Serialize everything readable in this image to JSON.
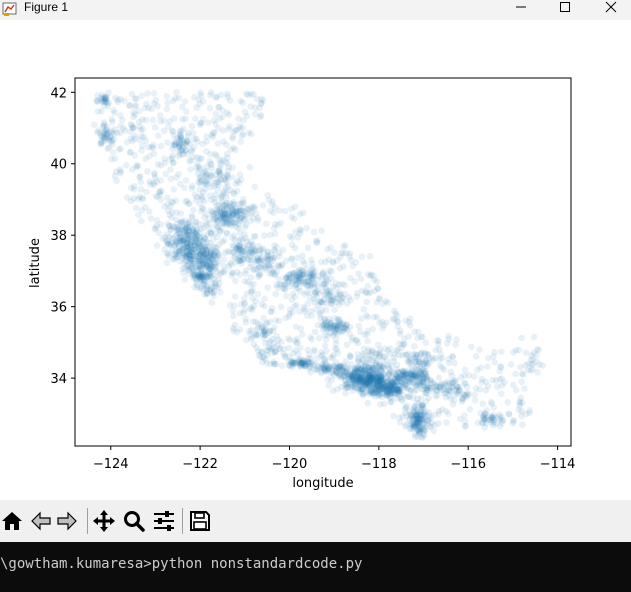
{
  "window": {
    "title": "Figure 1",
    "app_icon": "matplotlib-figure-icon",
    "controls": [
      "minimize-icon",
      "maximize-icon",
      "close-icon"
    ]
  },
  "toolbar": {
    "buttons": [
      {
        "name": "home-button",
        "icon": "home-icon"
      },
      {
        "name": "back-button",
        "icon": "arrow-left-icon"
      },
      {
        "name": "forward-button",
        "icon": "arrow-right-icon"
      },
      {
        "name": "pan-button",
        "icon": "move-arrows-icon"
      },
      {
        "name": "zoom-button",
        "icon": "magnifier-icon"
      },
      {
        "name": "configure-subplots-button",
        "icon": "sliders-icon"
      },
      {
        "name": "save-button",
        "icon": "floppy-disk-icon"
      }
    ]
  },
  "terminal": {
    "text": "\\gowtham.kumaresa>python nonstandardcode.py"
  },
  "chart_data": {
    "type": "scatter",
    "title": "",
    "xlabel": "longitude",
    "ylabel": "latitude",
    "xlim": [
      -124.8,
      -113.7
    ],
    "ylim": [
      32.1,
      42.4
    ],
    "xticks": [
      -124,
      -122,
      -120,
      -118,
      -116,
      -114
    ],
    "xtick_labels": [
      "−124",
      "−122",
      "−120",
      "−118",
      "−116",
      "−114"
    ],
    "yticks": [
      34,
      36,
      38,
      40,
      42
    ],
    "ytick_labels": [
      "34",
      "36",
      "38",
      "40",
      "42"
    ],
    "grid": false,
    "legend": false,
    "marker_color": "#1f77b4",
    "alpha": 0.1,
    "dense_clusters": [
      {
        "x": -124.2,
        "y": 41.8,
        "n": 22,
        "sx": 0.12,
        "sy": 0.1
      },
      {
        "x": -124.1,
        "y": 40.8,
        "n": 35,
        "sx": 0.1,
        "sy": 0.15
      },
      {
        "x": -122.4,
        "y": 40.5,
        "n": 45,
        "sx": 0.12,
        "sy": 0.22
      },
      {
        "x": -121.6,
        "y": 39.6,
        "n": 60,
        "sx": 0.3,
        "sy": 0.3
      },
      {
        "x": -121.4,
        "y": 38.6,
        "n": 140,
        "sx": 0.25,
        "sy": 0.18
      },
      {
        "x": -122.3,
        "y": 37.8,
        "n": 230,
        "sx": 0.22,
        "sy": 0.35
      },
      {
        "x": -121.9,
        "y": 37.3,
        "n": 120,
        "sx": 0.18,
        "sy": 0.2
      },
      {
        "x": -122.0,
        "y": 36.9,
        "n": 40,
        "sx": 0.1,
        "sy": 0.1
      },
      {
        "x": -121.8,
        "y": 36.6,
        "n": 35,
        "sx": 0.15,
        "sy": 0.12
      },
      {
        "x": -121.0,
        "y": 37.6,
        "n": 70,
        "sx": 0.2,
        "sy": 0.22
      },
      {
        "x": -120.5,
        "y": 37.3,
        "n": 45,
        "sx": 0.2,
        "sy": 0.2
      },
      {
        "x": -119.8,
        "y": 36.8,
        "n": 90,
        "sx": 0.22,
        "sy": 0.15
      },
      {
        "x": -119.1,
        "y": 36.3,
        "n": 50,
        "sx": 0.18,
        "sy": 0.2
      },
      {
        "x": -119.0,
        "y": 35.4,
        "n": 60,
        "sx": 0.15,
        "sy": 0.12
      },
      {
        "x": -120.6,
        "y": 35.3,
        "n": 30,
        "sx": 0.15,
        "sy": 0.15
      },
      {
        "x": -120.4,
        "y": 34.8,
        "n": 25,
        "sx": 0.15,
        "sy": 0.15
      },
      {
        "x": -119.7,
        "y": 34.4,
        "n": 50,
        "sx": 0.15,
        "sy": 0.05
      },
      {
        "x": -119.1,
        "y": 34.25,
        "n": 60,
        "sx": 0.25,
        "sy": 0.08
      },
      {
        "x": -118.3,
        "y": 34.0,
        "n": 350,
        "sx": 0.3,
        "sy": 0.18
      },
      {
        "x": -117.8,
        "y": 33.7,
        "n": 180,
        "sx": 0.2,
        "sy": 0.15
      },
      {
        "x": -117.3,
        "y": 34.05,
        "n": 100,
        "sx": 0.2,
        "sy": 0.1
      },
      {
        "x": -117.1,
        "y": 32.8,
        "n": 120,
        "sx": 0.1,
        "sy": 0.2
      },
      {
        "x": -116.9,
        "y": 33.8,
        "n": 40,
        "sx": 0.2,
        "sy": 0.12
      },
      {
        "x": -117.0,
        "y": 34.5,
        "n": 40,
        "sx": 0.25,
        "sy": 0.12
      },
      {
        "x": -118.1,
        "y": 34.6,
        "n": 30,
        "sx": 0.2,
        "sy": 0.12
      },
      {
        "x": -116.3,
        "y": 33.7,
        "n": 40,
        "sx": 0.25,
        "sy": 0.12
      },
      {
        "x": -115.5,
        "y": 32.9,
        "n": 25,
        "sx": 0.12,
        "sy": 0.1
      },
      {
        "x": -114.6,
        "y": 34.6,
        "n": 10,
        "sx": 0.15,
        "sy": 0.3
      },
      {
        "x": -117.7,
        "y": 35.6,
        "n": 12,
        "sx": 0.25,
        "sy": 0.2
      },
      {
        "x": -118.8,
        "y": 37.3,
        "n": 15,
        "sx": 0.3,
        "sy": 0.3
      }
    ],
    "sparse_region": [
      [
        -124.3,
        42.0
      ],
      [
        -123.2,
        42.0
      ],
      [
        -120.3,
        42.0
      ],
      [
        -121.4,
        39.6
      ],
      [
        -119.8,
        38.8
      ],
      [
        -118.3,
        37.2
      ],
      [
        -117.4,
        35.6
      ],
      [
        -115.8,
        34.9
      ],
      [
        -114.3,
        34.8
      ],
      [
        -114.4,
        33.9
      ],
      [
        -114.7,
        32.7
      ],
      [
        -116.8,
        32.5
      ],
      [
        -117.3,
        32.5
      ],
      [
        -118.6,
        33.9
      ],
      [
        -120.5,
        34.4
      ],
      [
        -121.1,
        35.1
      ],
      [
        -122.0,
        36.4
      ],
      [
        -122.7,
        37.3
      ],
      [
        -123.3,
        38.2
      ],
      [
        -124.1,
        40.0
      ],
      [
        -124.4,
        40.9
      ]
    ]
  }
}
